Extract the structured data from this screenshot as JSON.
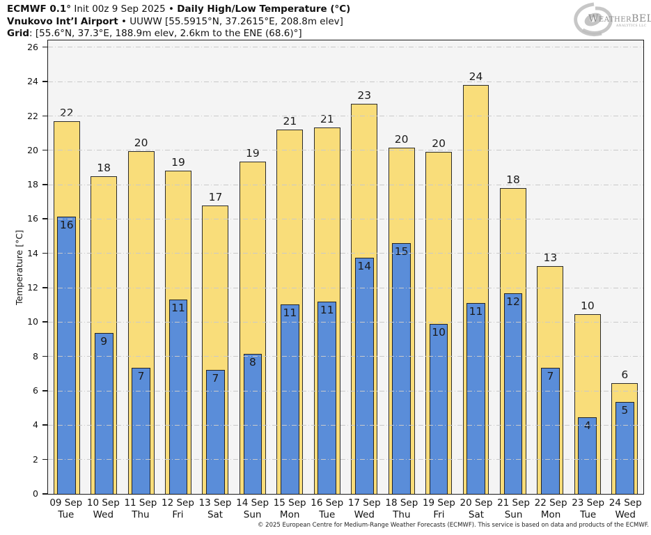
{
  "header": {
    "title_model": "ECMWF 0.1°",
    "title_mid": " Init 00z 9 Sep 2025 • ",
    "title_main": "Daily High/Low Temperature (°C)",
    "station_name": "Vnukovo Int’l Airport",
    "station_detail": " • UUWW [55.5915°N, 37.2615°E, 208.8m elev]",
    "grid_label": "Grid",
    "grid_detail": ": [55.6°N, 37.3°E, 188.9m elev, 2.6km to the ENE (68.6)°]"
  },
  "logo": {
    "icon": "hurricane-spiral-icon",
    "text_main": "WeatherBELL",
    "text_sub": "Analytics LLC"
  },
  "chart_data": {
    "type": "bar",
    "title": "ECMWF 0.1° Init 00z 9 Sep 2025 • Daily High/Low Temperature (°C)",
    "ylabel": "Temperature [°C]",
    "ylim": [
      0,
      26.4
    ],
    "yticks": [
      0,
      2,
      4,
      6,
      8,
      10,
      12,
      14,
      16,
      18,
      20,
      22,
      24,
      26
    ],
    "grid": true,
    "legend_position": "none",
    "categories": [
      "09 Sep",
      "10 Sep",
      "11 Sep",
      "12 Sep",
      "13 Sep",
      "14 Sep",
      "15 Sep",
      "16 Sep",
      "17 Sep",
      "18 Sep",
      "19 Sep",
      "20 Sep",
      "21 Sep",
      "22 Sep",
      "23 Sep",
      "24 Sep"
    ],
    "weekdays": [
      "Tue",
      "Wed",
      "Thu",
      "Fri",
      "Sat",
      "Sun",
      "Mon",
      "Tue",
      "Wed",
      "Thu",
      "Fri",
      "Sat",
      "Sun",
      "Mon",
      "Tue",
      "Wed"
    ],
    "series": [
      {
        "name": "Daily High",
        "color": "#f9dd7a",
        "values": [
          21.7,
          18.5,
          19.95,
          18.8,
          16.8,
          19.35,
          21.2,
          21.35,
          22.7,
          20.15,
          19.9,
          23.8,
          17.8,
          13.25,
          10.45,
          6.45
        ],
        "labels": [
          "22",
          "18",
          "20",
          "19",
          "17",
          "19",
          "21",
          "21",
          "23",
          "20",
          "20",
          "24",
          "18",
          "13",
          "10",
          "6"
        ]
      },
      {
        "name": "Daily Low",
        "color": "#5a8dd9",
        "values": [
          16.15,
          9.35,
          7.35,
          11.3,
          7.2,
          8.15,
          11.05,
          11.2,
          13.75,
          14.6,
          9.9,
          11.1,
          11.7,
          7.35,
          4.45,
          5.35
        ],
        "labels": [
          "16",
          "9",
          "7",
          "11",
          "7",
          "8",
          "11",
          "11",
          "14",
          "15",
          "10",
          "11",
          "12",
          "7",
          "4",
          "5"
        ]
      }
    ]
  },
  "footer": {
    "copyright": "© 2025 European Centre for Medium-Range Weather Forecasts (ECMWF). This service is based on data and products of the ECMWF."
  }
}
